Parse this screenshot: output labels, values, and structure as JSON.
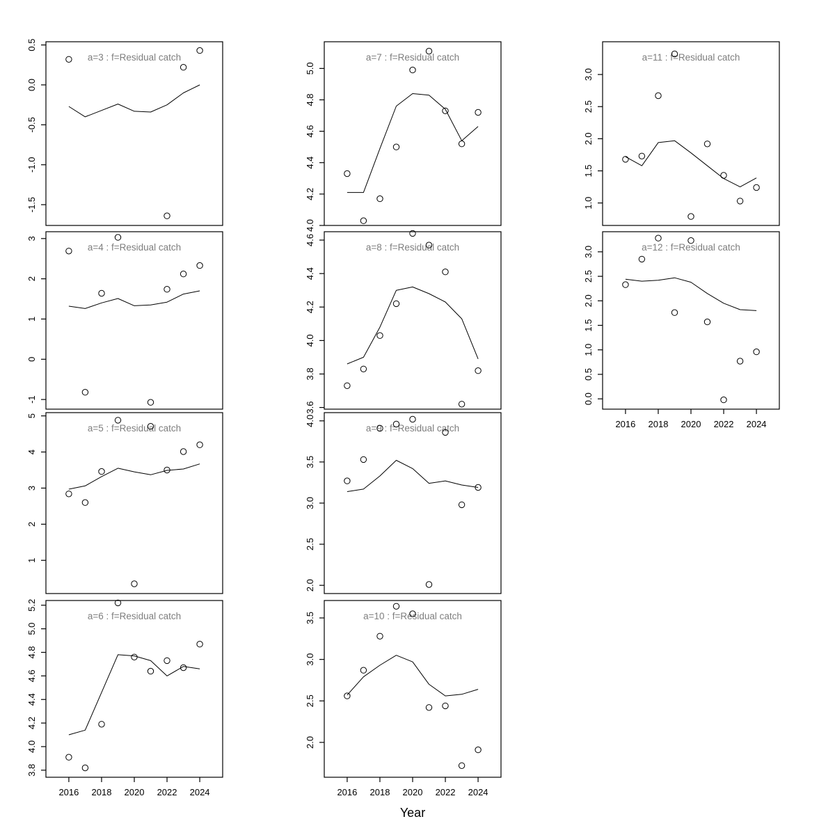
{
  "figure": {
    "xlabel": "Year",
    "colors": {
      "axis": "#000000",
      "panel_title": "#7e7e7e",
      "background": "#ffffff",
      "data": "#000000"
    },
    "xlim": [
      2014.6,
      2025.4
    ],
    "x_ticks": [
      2016,
      2018,
      2020,
      2022,
      2024
    ],
    "years": [
      2016,
      2017,
      2018,
      2019,
      2020,
      2021,
      2022,
      2023,
      2024
    ]
  },
  "chart_data": [
    {
      "type": "scatter",
      "age": 3,
      "title": "a=3  :  f=Residual catch",
      "grid_col": 0,
      "grid_row": 0,
      "show_xaxis": false,
      "ylim": [
        -1.76,
        0.54
      ],
      "yticks": [
        0.5,
        0.0,
        -0.5,
        -1.0,
        -1.5
      ],
      "ytick_labels": [
        "0.5",
        "0.0",
        "-0.5",
        "-1.0",
        "-1.5"
      ],
      "points": {
        "x": [
          2016,
          2022,
          2023,
          2024
        ],
        "y": [
          0.32,
          -1.64,
          0.22,
          0.43
        ]
      },
      "fitted_line": {
        "x": [
          2016,
          2017,
          2018,
          2019,
          2020,
          2021,
          2022,
          2023,
          2024
        ],
        "y": [
          -0.27,
          -0.4,
          -0.32,
          -0.24,
          -0.33,
          -0.34,
          -0.25,
          -0.1,
          0.0
        ]
      }
    },
    {
      "type": "scatter",
      "age": 4,
      "title": "a=4  :  f=Residual catch",
      "grid_col": 0,
      "grid_row": 1,
      "show_xaxis": false,
      "ylim": [
        -1.24,
        3.17
      ],
      "yticks": [
        3,
        2,
        1,
        0,
        -1
      ],
      "ytick_labels": [
        "3",
        "2",
        "1",
        "0",
        "-1"
      ],
      "points": {
        "x": [
          2016,
          2017,
          2018,
          2019,
          2021,
          2022,
          2023,
          2024
        ],
        "y": [
          2.69,
          -0.82,
          1.64,
          3.03,
          -1.07,
          1.74,
          2.12,
          2.33
        ]
      },
      "fitted_line": {
        "x": [
          2016,
          2017,
          2018,
          2019,
          2020,
          2021,
          2022,
          2023,
          2024
        ],
        "y": [
          1.32,
          1.26,
          1.4,
          1.51,
          1.33,
          1.35,
          1.42,
          1.62,
          1.7
        ]
      }
    },
    {
      "type": "scatter",
      "age": 5,
      "title": "a=5  :  f=Residual catch",
      "grid_col": 0,
      "grid_row": 2,
      "show_xaxis": false,
      "ylim": [
        0.08,
        5.09
      ],
      "yticks": [
        5,
        4,
        3,
        2,
        1
      ],
      "ytick_labels": [
        "5",
        "4",
        "3",
        "2",
        "1"
      ],
      "points": {
        "x": [
          2016,
          2017,
          2018,
          2019,
          2020,
          2021,
          2022,
          2023,
          2024
        ],
        "y": [
          2.84,
          2.6,
          3.46,
          4.88,
          0.35,
          4.71,
          3.5,
          4.01,
          4.2
        ]
      },
      "fitted_line": {
        "x": [
          2016,
          2017,
          2018,
          2019,
          2020,
          2021,
          2022,
          2023,
          2024
        ],
        "y": [
          2.97,
          3.06,
          3.32,
          3.55,
          3.45,
          3.37,
          3.49,
          3.53,
          3.67
        ]
      }
    },
    {
      "type": "scatter",
      "age": 6,
      "title": "a=6  :  f=Residual catch",
      "grid_col": 0,
      "grid_row": 3,
      "show_xaxis": true,
      "ylim": [
        3.74,
        5.24
      ],
      "yticks": [
        5.2,
        5.0,
        4.8,
        4.6,
        4.4,
        4.2,
        4.0,
        3.8
      ],
      "ytick_labels": [
        "5.2",
        "5.0",
        "4.8",
        "4.6",
        "4.4",
        "4.2",
        "4.0",
        "3.8"
      ],
      "points": {
        "x": [
          2016,
          2017,
          2018,
          2019,
          2020,
          2021,
          2022,
          2023,
          2024
        ],
        "y": [
          3.91,
          3.82,
          4.19,
          5.22,
          4.76,
          4.64,
          4.73,
          4.67,
          4.87
        ]
      },
      "fitted_line": {
        "x": [
          2016,
          2017,
          2018,
          2019,
          2020,
          2021,
          2022,
          2023,
          2024
        ],
        "y": [
          4.1,
          4.14,
          4.46,
          4.78,
          4.77,
          4.73,
          4.6,
          4.68,
          4.66
        ]
      }
    },
    {
      "type": "scatter",
      "age": 7,
      "title": "a=7  :  f=Residual catch",
      "grid_col": 1,
      "grid_row": 0,
      "show_xaxis": false,
      "ylim": [
        4.0,
        5.17
      ],
      "yticks": [
        5.0,
        4.8,
        4.6,
        4.4,
        4.2,
        4.0
      ],
      "ytick_labels": [
        "5.0",
        "4.8",
        "4.6",
        "4.4",
        "4.2",
        "4.0"
      ],
      "points": {
        "x": [
          2016,
          2017,
          2018,
          2019,
          2020,
          2021,
          2022,
          2023,
          2024
        ],
        "y": [
          4.33,
          4.03,
          4.17,
          4.5,
          4.99,
          5.11,
          4.73,
          4.52,
          4.72
        ]
      },
      "fitted_line": {
        "x": [
          2016,
          2017,
          2018,
          2019,
          2020,
          2021,
          2022,
          2023,
          2024
        ],
        "y": [
          4.21,
          4.21,
          4.49,
          4.76,
          4.84,
          4.83,
          4.74,
          4.54,
          4.63
        ]
      }
    },
    {
      "type": "scatter",
      "age": 8,
      "title": "a=8  :  f=Residual catch",
      "grid_col": 1,
      "grid_row": 1,
      "show_xaxis": false,
      "ylim": [
        3.59,
        4.65
      ],
      "yticks": [
        4.6,
        4.4,
        4.2,
        4.0,
        3.8,
        3.6
      ],
      "ytick_labels": [
        "4.6",
        "4.4",
        "4.2",
        "4.0",
        "3.8",
        "3.6"
      ],
      "points": {
        "x": [
          2016,
          2017,
          2018,
          2019,
          2020,
          2021,
          2022,
          2023,
          2024
        ],
        "y": [
          3.73,
          3.83,
          4.03,
          4.22,
          4.64,
          4.57,
          4.41,
          3.62,
          3.82
        ]
      },
      "fitted_line": {
        "x": [
          2016,
          2017,
          2018,
          2019,
          2020,
          2021,
          2022,
          2023,
          2024
        ],
        "y": [
          3.86,
          3.9,
          4.08,
          4.3,
          4.32,
          4.28,
          4.23,
          4.13,
          3.89
        ]
      }
    },
    {
      "type": "scatter",
      "age": 9,
      "title": "a=9  :  f=Residual catch",
      "grid_col": 1,
      "grid_row": 2,
      "show_xaxis": false,
      "ylim": [
        1.9,
        4.1
      ],
      "yticks": [
        4.0,
        3.5,
        3.0,
        2.5,
        2.0
      ],
      "ytick_labels": [
        "4.0",
        "3.5",
        "3.0",
        "2.5",
        "2.0"
      ],
      "points": {
        "x": [
          2016,
          2017,
          2018,
          2019,
          2020,
          2021,
          2022,
          2023,
          2024
        ],
        "y": [
          3.27,
          3.53,
          3.91,
          3.96,
          4.02,
          2.01,
          3.86,
          2.98,
          3.19
        ]
      },
      "fitted_line": {
        "x": [
          2016,
          2017,
          2018,
          2019,
          2020,
          2021,
          2022,
          2023,
          2024
        ],
        "y": [
          3.14,
          3.17,
          3.33,
          3.52,
          3.42,
          3.24,
          3.27,
          3.22,
          3.19
        ]
      }
    },
    {
      "type": "scatter",
      "age": 10,
      "title": "a=10  :  f=Residual catch",
      "grid_col": 1,
      "grid_row": 3,
      "show_xaxis": true,
      "ylim": [
        1.58,
        3.71
      ],
      "yticks": [
        3.5,
        3.0,
        2.5,
        2.0
      ],
      "ytick_labels": [
        "3.5",
        "3.0",
        "2.5",
        "2.0"
      ],
      "points": {
        "x": [
          2016,
          2017,
          2018,
          2019,
          2020,
          2021,
          2022,
          2023,
          2024
        ],
        "y": [
          2.56,
          2.87,
          3.28,
          3.64,
          3.55,
          2.42,
          2.44,
          1.72,
          1.91
        ]
      },
      "fitted_line": {
        "x": [
          2016,
          2017,
          2018,
          2019,
          2020,
          2021,
          2022,
          2023,
          2024
        ],
        "y": [
          2.57,
          2.79,
          2.93,
          3.05,
          2.97,
          2.7,
          2.56,
          2.58,
          2.64
        ]
      }
    },
    {
      "type": "scatter",
      "age": 11,
      "title": "a=11  :  f=Residual catch",
      "grid_col": 2,
      "grid_row": 0,
      "show_xaxis": false,
      "ylim": [
        0.65,
        3.51
      ],
      "yticks": [
        3.0,
        2.5,
        2.0,
        1.5,
        1.0
      ],
      "ytick_labels": [
        "3.0",
        "2.5",
        "2.0",
        "1.5",
        "1.0"
      ],
      "points": {
        "x": [
          2016,
          2017,
          2018,
          2019,
          2020,
          2021,
          2022,
          2023,
          2024
        ],
        "y": [
          1.68,
          1.73,
          2.67,
          3.32,
          0.79,
          1.92,
          1.43,
          1.03,
          1.24
        ]
      },
      "fitted_line": {
        "x": [
          2016,
          2017,
          2018,
          2019,
          2020,
          2021,
          2022,
          2023,
          2024
        ],
        "y": [
          1.72,
          1.58,
          1.94,
          1.97,
          1.78,
          1.58,
          1.38,
          1.25,
          1.39
        ]
      }
    },
    {
      "type": "scatter",
      "age": 12,
      "title": "a=12  :  f=Residual catch",
      "grid_col": 2,
      "grid_row": 1,
      "show_xaxis": true,
      "ylim": [
        -0.21,
        3.41
      ],
      "yticks": [
        3.0,
        2.5,
        2.0,
        1.5,
        1.0,
        0.5,
        0.0
      ],
      "ytick_labels": [
        "3.0",
        "2.5",
        "2.0",
        "1.5",
        "1.0",
        "0.5",
        "0.0"
      ],
      "points": {
        "x": [
          2016,
          2017,
          2018,
          2019,
          2020,
          2021,
          2022,
          2023,
          2024
        ],
        "y": [
          2.33,
          2.85,
          3.28,
          1.76,
          3.23,
          1.57,
          -0.02,
          0.77,
          0.96
        ]
      },
      "fitted_line": {
        "x": [
          2016,
          2017,
          2018,
          2019,
          2020,
          2021,
          2022,
          2023,
          2024
        ],
        "y": [
          2.44,
          2.4,
          2.42,
          2.47,
          2.38,
          2.15,
          1.95,
          1.82,
          1.8
        ]
      }
    }
  ]
}
